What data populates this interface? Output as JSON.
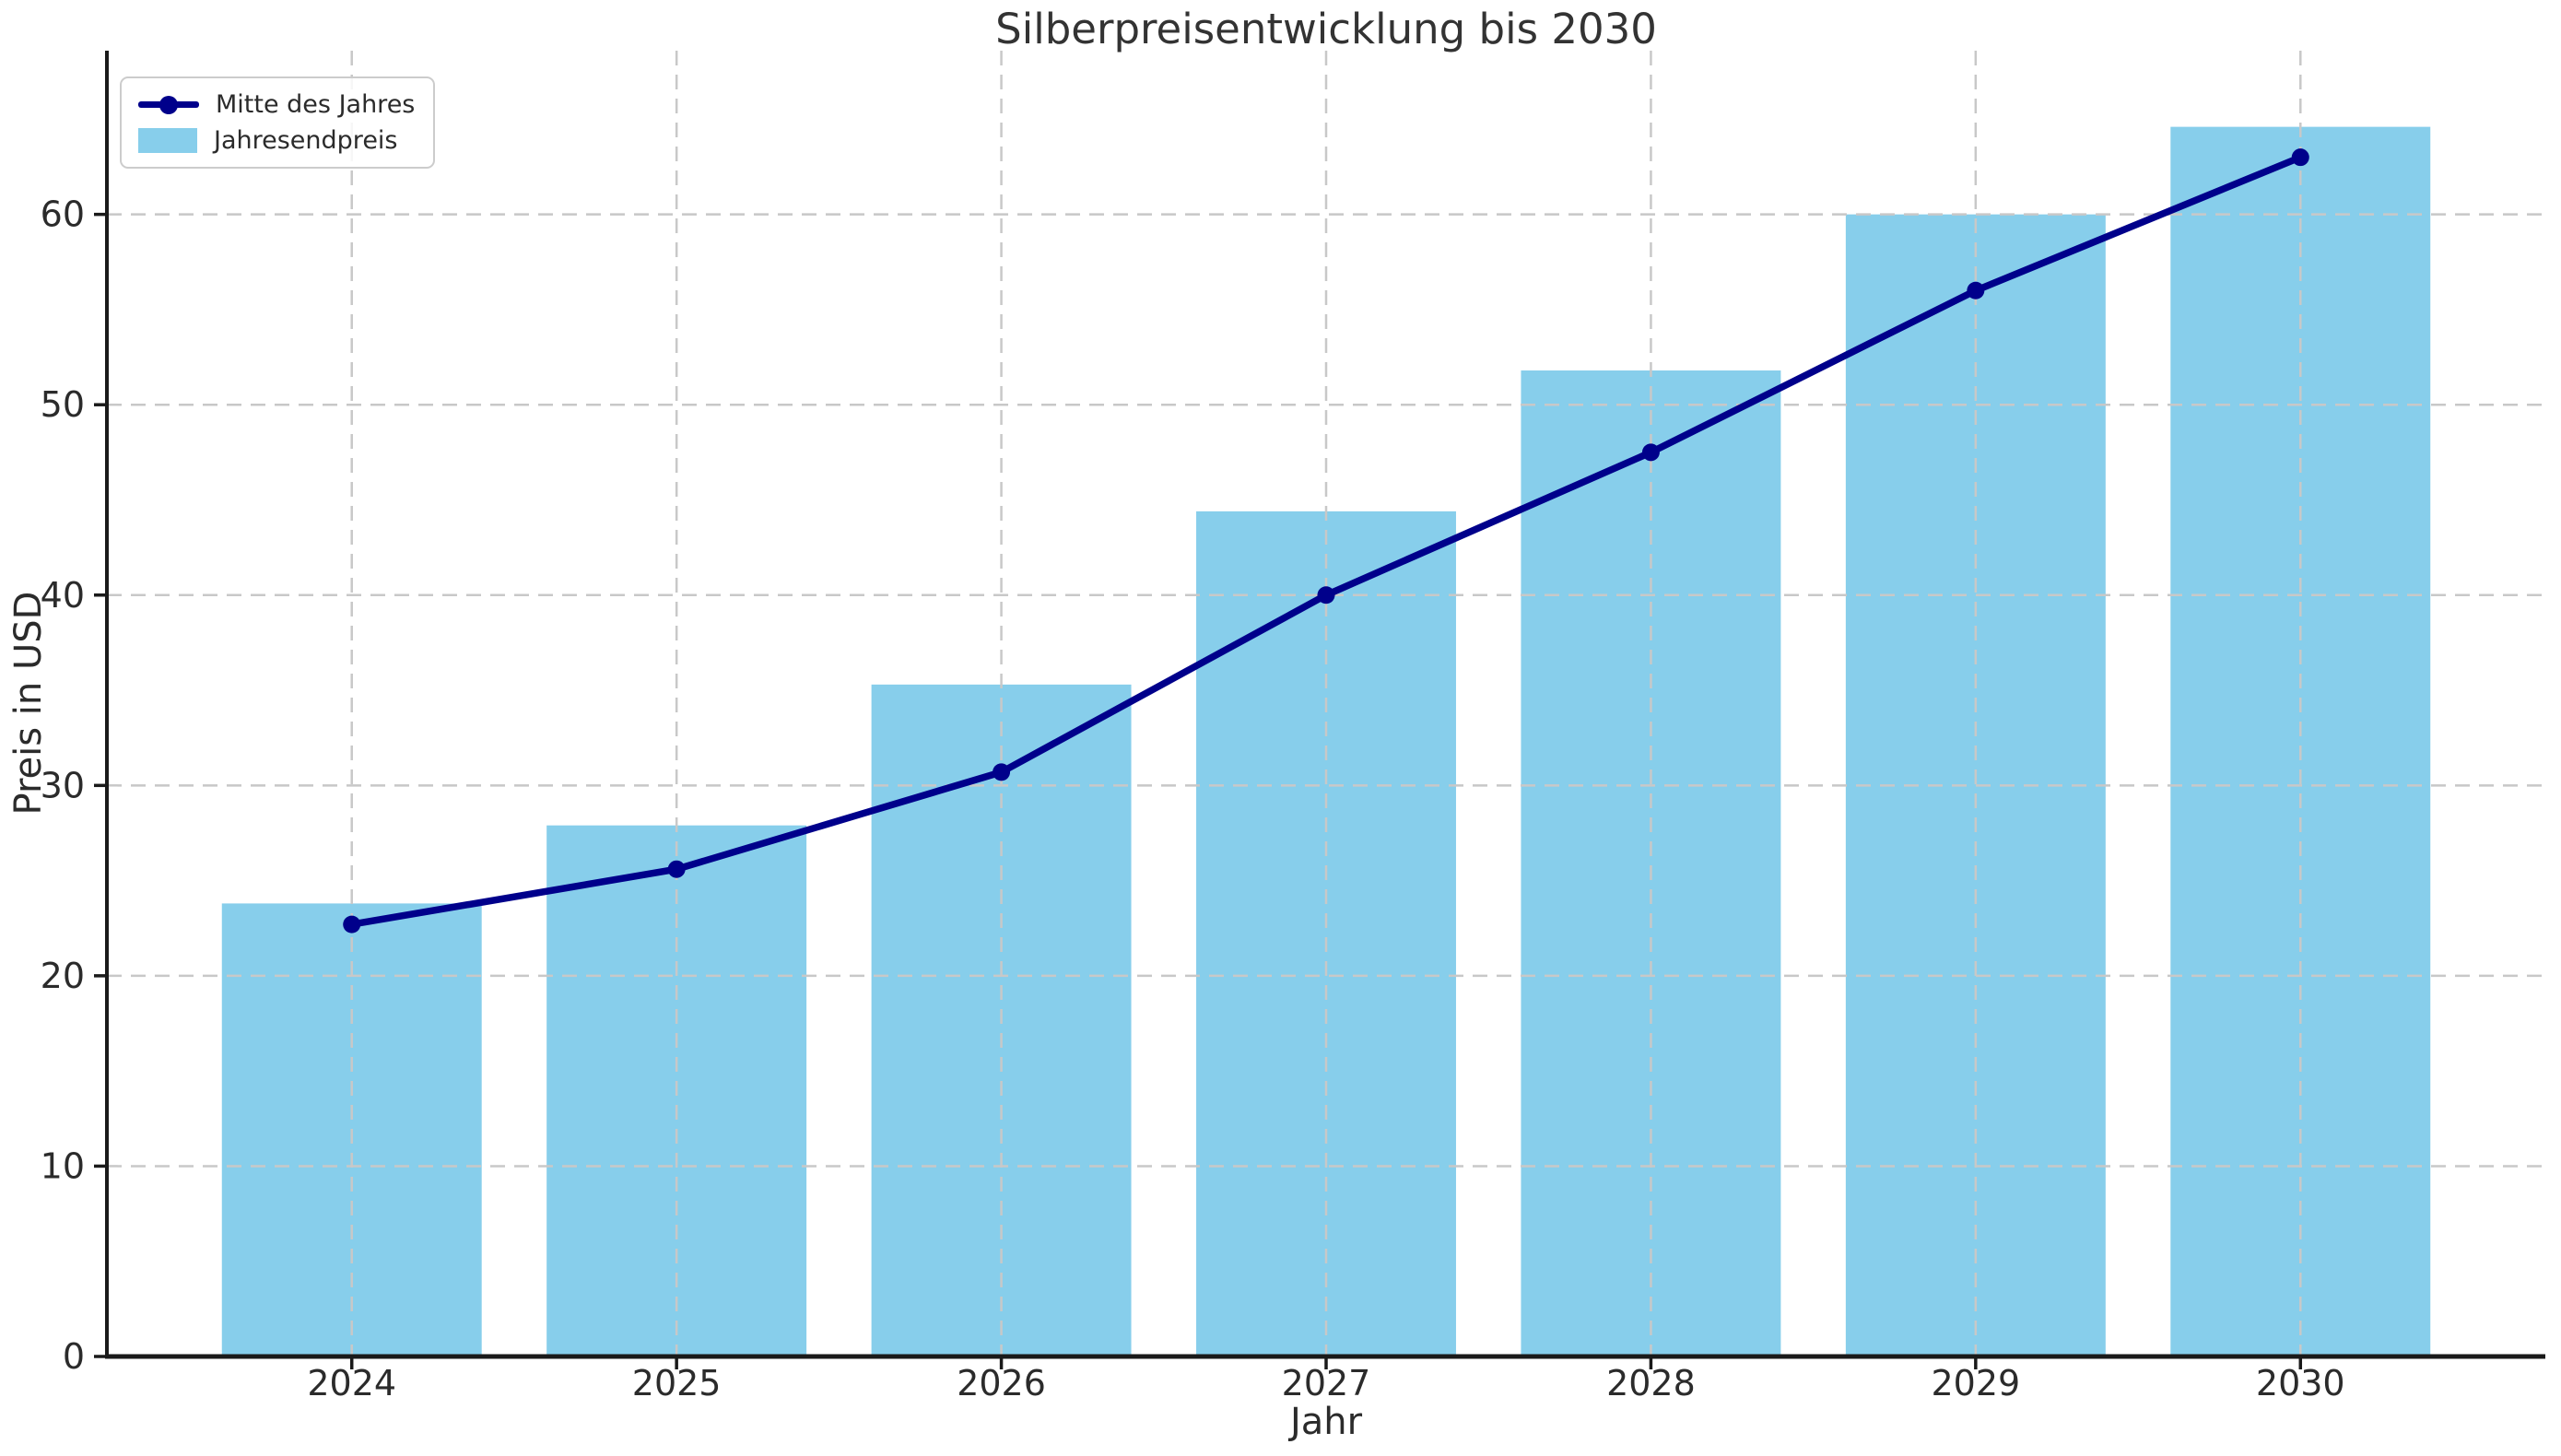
{
  "chart_data": {
    "type": "bar",
    "title": "Silberpreisentwicklung bis 2030",
    "xlabel": "Jahr",
    "ylabel": "Preis in USD",
    "categories": [
      "2024",
      "2025",
      "2026",
      "2027",
      "2028",
      "2029",
      "2030"
    ],
    "series": [
      {
        "name": "Jahresendpreis",
        "type": "bar",
        "color": "#87CEEB",
        "values": [
          23.8,
          27.9,
          35.3,
          44.4,
          51.8,
          60.0,
          64.6
        ]
      },
      {
        "name": "Mitte des Jahres",
        "type": "line",
        "color": "#00008B",
        "values": [
          22.7,
          25.6,
          30.7,
          40.0,
          47.5,
          56.0,
          63.0
        ]
      }
    ],
    "ylim": [
      0,
      68.6
    ],
    "yticks": [
      0,
      10,
      20,
      30,
      40,
      50,
      60
    ],
    "grid": true,
    "grid_style": "dashed",
    "grid_color": "#c8c8c8",
    "bar_width_fraction": 0.8,
    "legend_position": "upper left"
  }
}
